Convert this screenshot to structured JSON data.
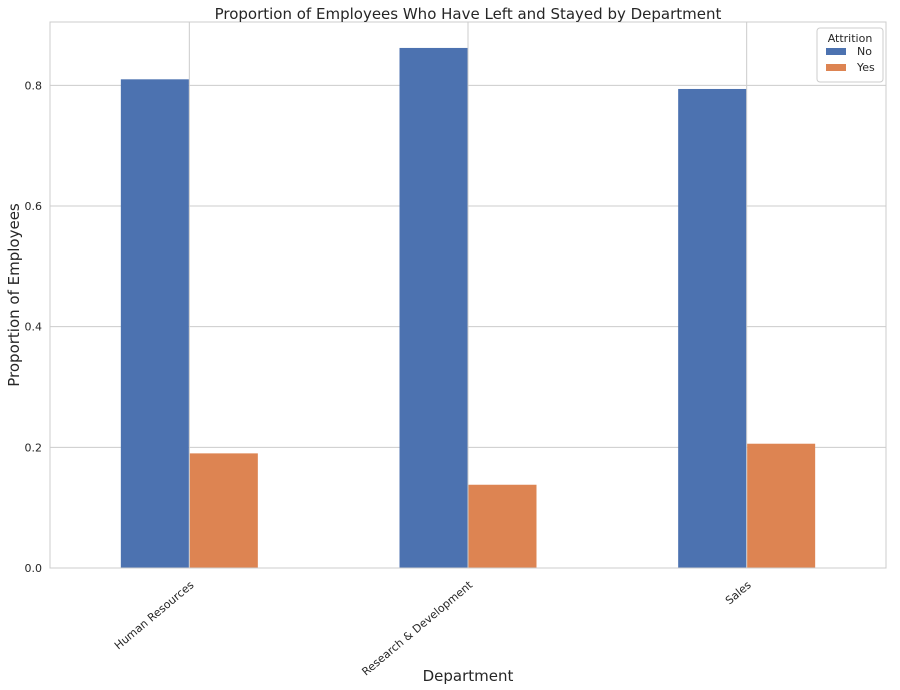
{
  "chart_data": {
    "type": "bar",
    "title": "Proportion of Employees Who Have Left and Stayed by Department",
    "xlabel": "Department",
    "ylabel": "Proportion of Employees",
    "categories": [
      "Human Resources",
      "Research & Development",
      "Sales"
    ],
    "series": [
      {
        "name": "No",
        "color": "#4c72b0",
        "values": [
          0.81,
          0.862,
          0.794
        ]
      },
      {
        "name": "Yes",
        "color": "#dd8452",
        "values": [
          0.19,
          0.138,
          0.206
        ]
      }
    ],
    "ylim": [
      0,
      0.905
    ],
    "yticks": [
      0.0,
      0.2,
      0.4,
      0.6,
      0.8
    ],
    "ytick_labels": [
      "0.0",
      "0.2",
      "0.4",
      "0.6",
      "0.8"
    ],
    "grid": true,
    "xtick_rotation_deg": 40,
    "legend": {
      "title": "Attrition",
      "placement": "top-right"
    }
  }
}
